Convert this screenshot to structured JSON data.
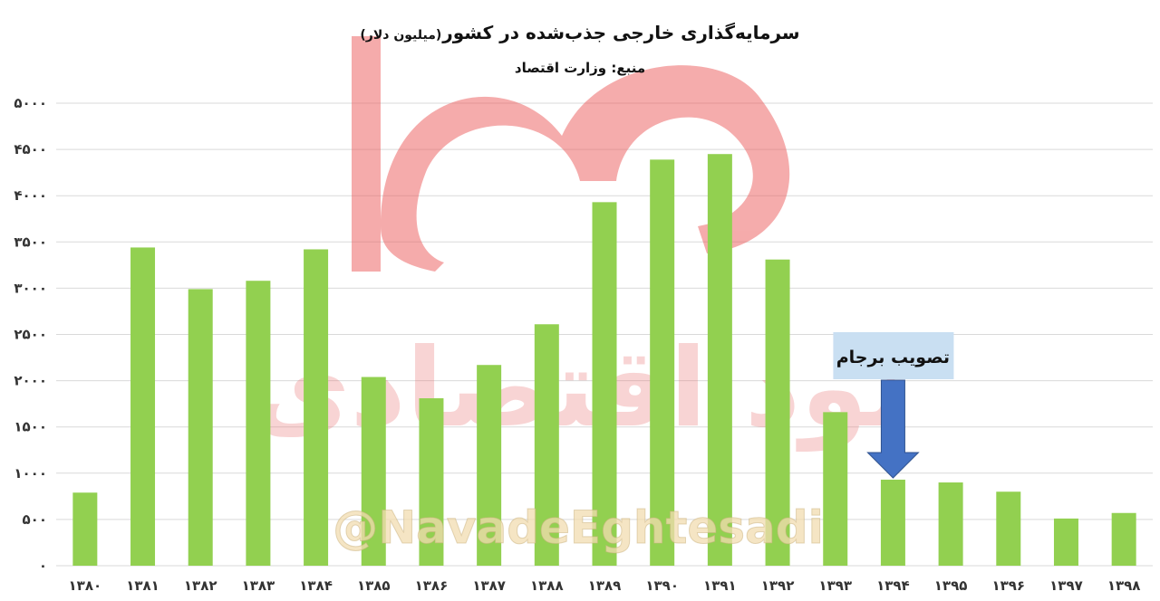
{
  "chart_data": {
    "type": "bar",
    "title": "سرمایه‌گذاری خارجی جذب‌شده در کشور",
    "title_unit": "(میلیون دلار)",
    "subtitle": "منبع: وزارت اقتصاد",
    "categories": [
      "۱۳۸۰",
      "۱۳۸۱",
      "۱۳۸۲",
      "۱۳۸۳",
      "۱۳۸۴",
      "۱۳۸۵",
      "۱۳۸۶",
      "۱۳۸۷",
      "۱۳۸۸",
      "۱۳۸۹",
      "۱۳۹۰",
      "۱۳۹۱",
      "۱۳۹۲",
      "۱۳۹۳",
      "۱۳۹۴",
      "۱۳۹۵",
      "۱۳۹۶",
      "۱۳۹۷",
      "۱۳۹۸"
    ],
    "values": [
      790,
      3440,
      2990,
      3080,
      3420,
      2040,
      1810,
      2170,
      2610,
      3930,
      4390,
      4450,
      3310,
      1660,
      930,
      900,
      800,
      510,
      570
    ],
    "ylim": [
      0,
      5000
    ],
    "yticks": [
      0,
      500,
      1000,
      1500,
      2000,
      2500,
      3000,
      3500,
      4000,
      4500,
      5000
    ],
    "ytick_labels": [
      "۰",
      "۵۰۰",
      "۱۰۰۰",
      "۱۵۰۰",
      "۲۰۰۰",
      "۲۵۰۰",
      "۳۰۰۰",
      "۳۵۰۰",
      "۴۰۰۰",
      "۴۵۰۰",
      "۵۰۰۰"
    ],
    "grid": true,
    "bar_color": "#92d050",
    "annotation": {
      "text": "تصویب برجام",
      "category": "۱۳۹۴",
      "box_color": "#c9dff2",
      "arrow_color": "#4472c4"
    }
  },
  "watermark": {
    "handle": "@NavadeEghtesadi",
    "brand_text": "نود اقتصادی",
    "color": "#f19a9a"
  }
}
